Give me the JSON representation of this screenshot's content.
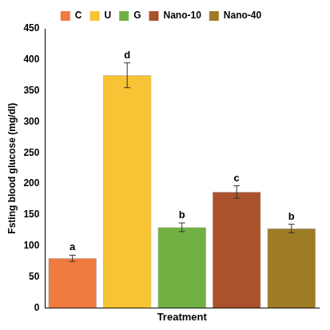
{
  "chart_data": {
    "type": "bar",
    "categories": [
      "C",
      "U",
      "G",
      "Nano-10",
      "Nano-40"
    ],
    "values": [
      80,
      375,
      130,
      187,
      128
    ],
    "errors": [
      5,
      20,
      7,
      10,
      7
    ],
    "annotations": [
      "a",
      "d",
      "b",
      "c",
      "b"
    ],
    "colors": [
      "#f07b3f",
      "#f8c334",
      "#72b043",
      "#a9522c",
      "#9e7b25"
    ],
    "x_label": "Treatment",
    "y_label": "Fsting blood glucose (mg/dl)",
    "ylim": [
      0,
      450
    ],
    "yticks": [
      0,
      50,
      100,
      150,
      200,
      250,
      300,
      350,
      400,
      450
    ],
    "grid": false,
    "legend": "top",
    "tick_labels": "y"
  }
}
